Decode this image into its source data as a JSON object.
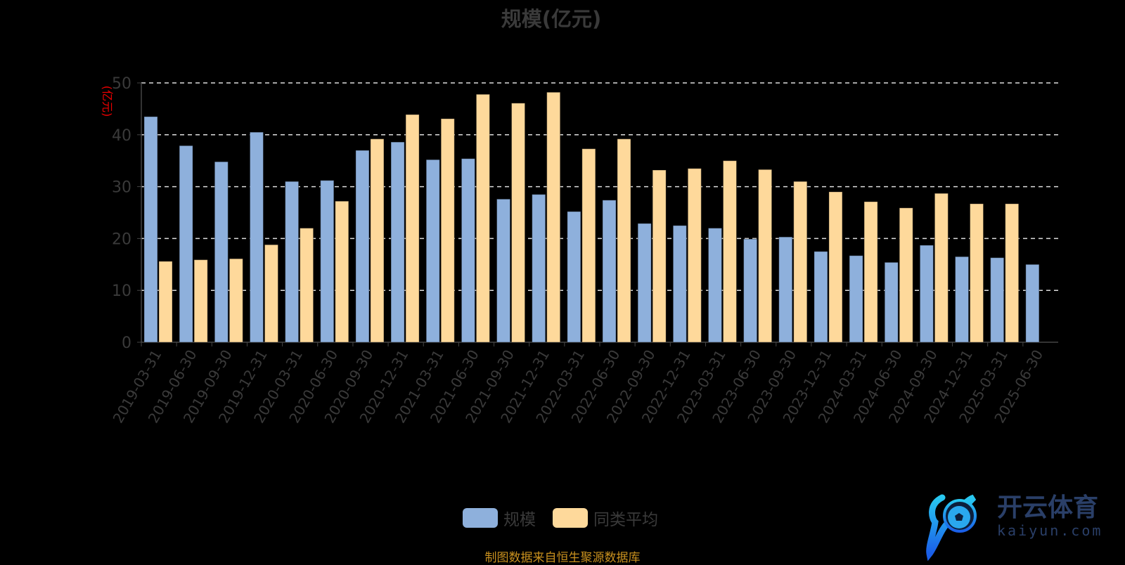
{
  "chart_data": {
    "type": "bar",
    "title": "规模(亿元)",
    "ylabel": "(亿元)",
    "xlabel": "",
    "ylim": [
      0,
      50
    ],
    "yticks": [
      0,
      10,
      20,
      30,
      40,
      50
    ],
    "grid": true,
    "legend_position": "bottom",
    "categories": [
      "2019-03-31",
      "2019-06-30",
      "2019-09-30",
      "2019-12-31",
      "2020-03-31",
      "2020-06-30",
      "2020-09-30",
      "2020-12-31",
      "2021-03-31",
      "2021-06-30",
      "2021-09-30",
      "2021-12-31",
      "2022-03-31",
      "2022-06-30",
      "2022-09-30",
      "2022-12-31",
      "2023-03-31",
      "2023-06-30",
      "2023-09-30",
      "2023-12-31",
      "2024-03-31",
      "2024-06-30",
      "2024-09-30",
      "2024-12-31",
      "2025-03-31",
      "2025-06-30"
    ],
    "series": [
      {
        "name": "规模",
        "color": "#8eb0dc",
        "values": [
          43.5,
          37.9,
          34.8,
          40.5,
          31.0,
          31.2,
          37.0,
          38.6,
          35.2,
          35.4,
          27.6,
          28.5,
          25.2,
          27.4,
          22.9,
          22.5,
          22.0,
          19.9,
          20.3,
          17.5,
          16.7,
          15.4,
          18.7,
          16.5,
          16.3,
          15.0
        ]
      },
      {
        "name": "同类平均",
        "color": "#fed99b",
        "values": [
          15.6,
          15.9,
          16.1,
          18.8,
          22.0,
          27.2,
          39.2,
          43.9,
          43.1,
          47.8,
          46.1,
          48.2,
          37.3,
          39.2,
          33.2,
          33.5,
          35.0,
          33.3,
          31.0,
          29.0,
          27.1,
          25.9,
          28.7,
          26.7,
          26.7,
          null
        ]
      }
    ]
  },
  "footer": "制图数据来自恒生聚源数据库",
  "watermark": {
    "name": "开云体育",
    "url_text": "kaiyun.com"
  }
}
